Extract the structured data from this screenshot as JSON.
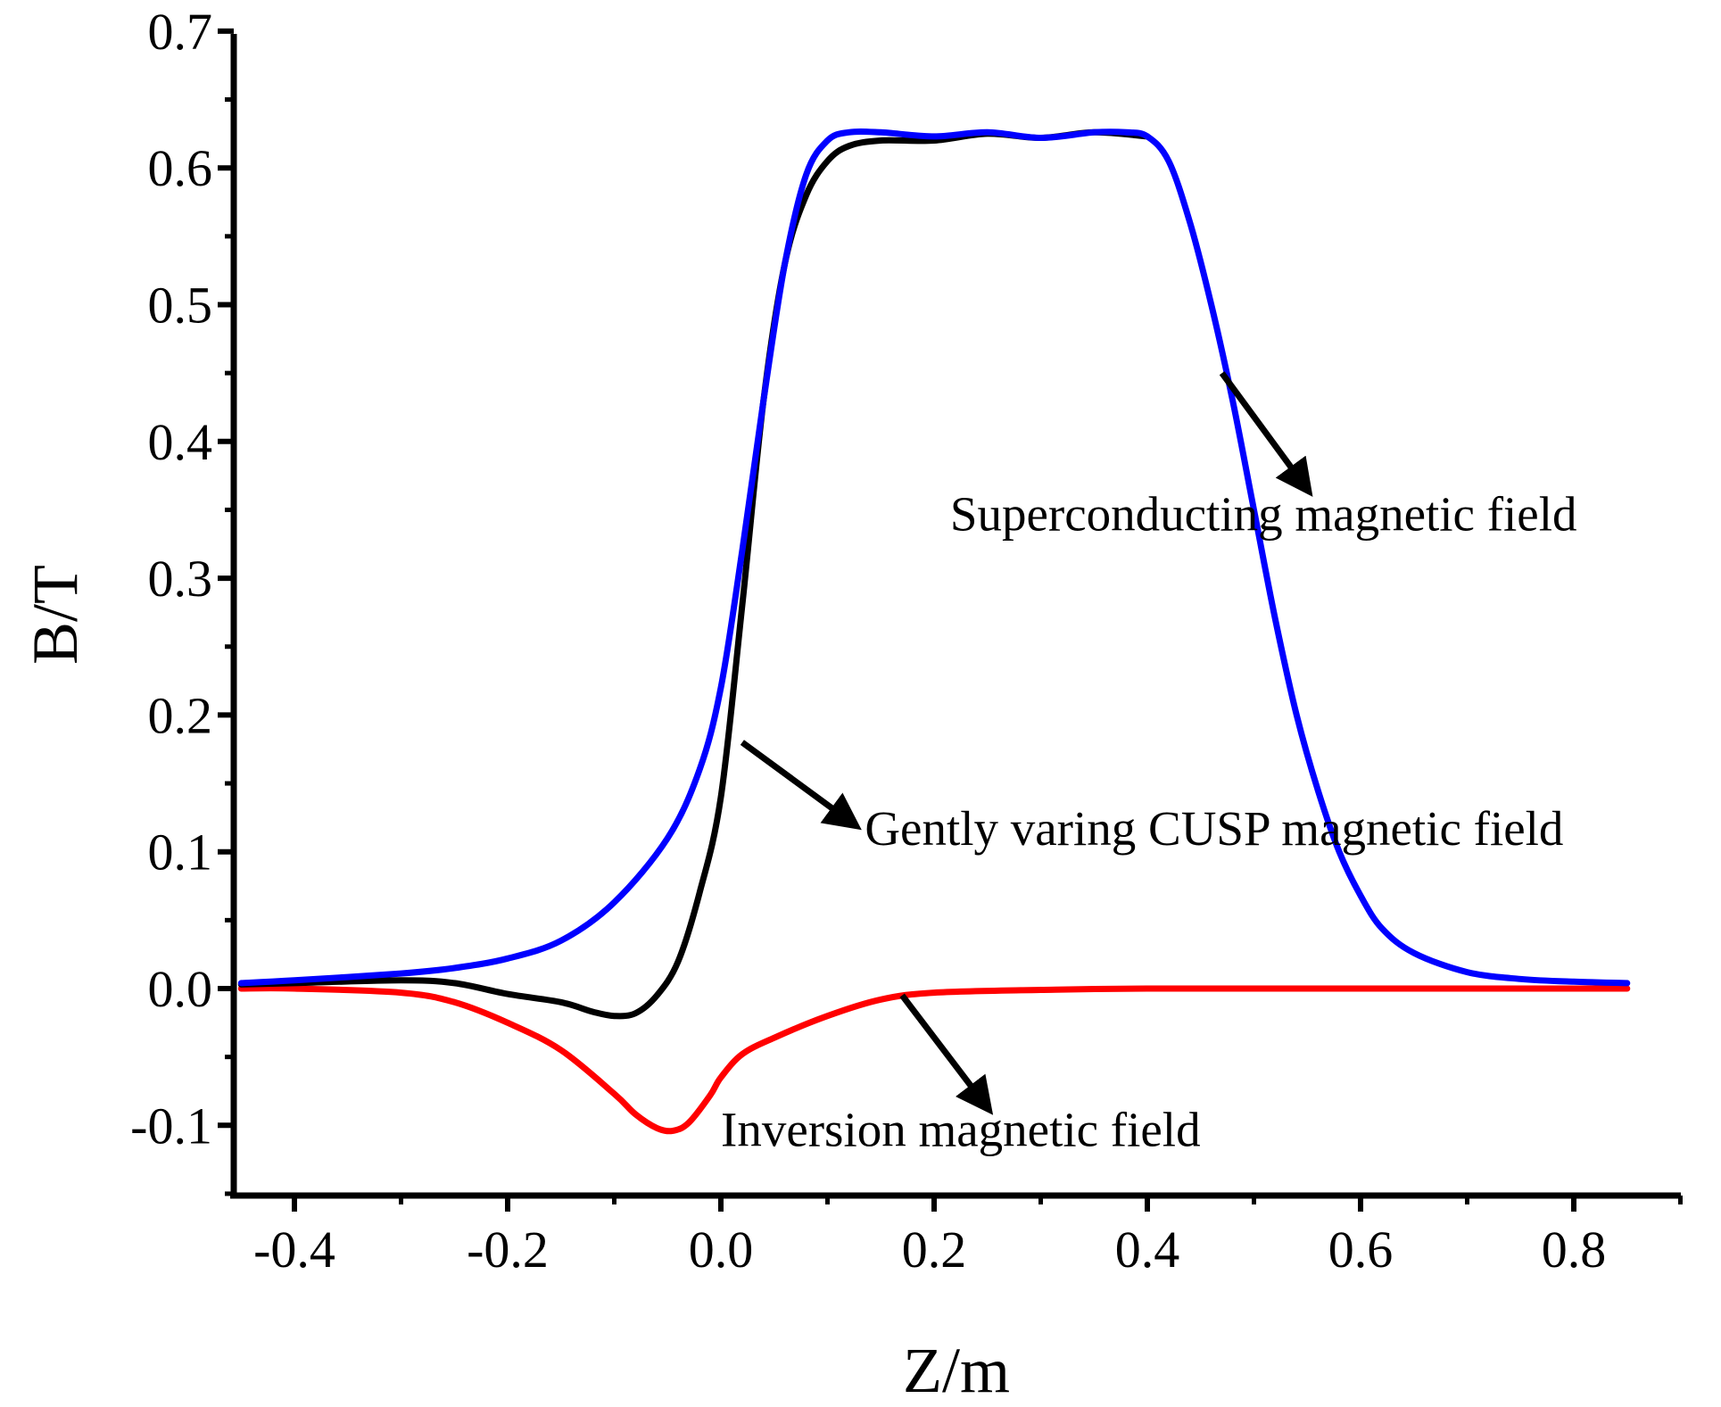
{
  "chart_data": {
    "type": "line",
    "title": "",
    "xlabel": "Z/m",
    "ylabel": "B/T",
    "xlim": [
      -0.46,
      0.9
    ],
    "ylim": [
      -0.15,
      0.7
    ],
    "xticks": [
      -0.4,
      -0.2,
      0.0,
      0.2,
      0.4,
      0.6,
      0.8
    ],
    "xtick_labels": [
      "-0.4",
      "-0.2",
      "0.0",
      "0.2",
      "0.4",
      "0.6",
      "0.8"
    ],
    "yticks": [
      -0.1,
      0.0,
      0.1,
      0.2,
      0.3,
      0.4,
      0.5,
      0.6,
      0.7
    ],
    "ytick_labels": [
      "-0.1",
      "0.0",
      "0.1",
      "0.2",
      "0.3",
      "0.4",
      "0.5",
      "0.6",
      "0.7"
    ],
    "grid": false,
    "series": [
      {
        "name": "Superconducting magnetic field",
        "color": "#0000ff",
        "x": [
          -0.45,
          -0.4,
          -0.3,
          -0.25,
          -0.2,
          -0.15,
          -0.1,
          -0.05,
          -0.02,
          0.0,
          0.02,
          0.04,
          0.06,
          0.08,
          0.1,
          0.12,
          0.15,
          0.2,
          0.25,
          0.3,
          0.35,
          0.38,
          0.4,
          0.42,
          0.44,
          0.46,
          0.48,
          0.5,
          0.52,
          0.54,
          0.56,
          0.58,
          0.6,
          0.62,
          0.65,
          0.7,
          0.75,
          0.8,
          0.85
        ],
        "y": [
          0.004,
          0.006,
          0.011,
          0.015,
          0.022,
          0.035,
          0.063,
          0.11,
          0.16,
          0.22,
          0.32,
          0.43,
          0.53,
          0.595,
          0.62,
          0.626,
          0.626,
          0.623,
          0.626,
          0.622,
          0.626,
          0.626,
          0.623,
          0.605,
          0.56,
          0.5,
          0.43,
          0.35,
          0.27,
          0.2,
          0.145,
          0.1,
          0.068,
          0.044,
          0.026,
          0.012,
          0.007,
          0.005,
          0.004
        ]
      },
      {
        "name": "Gently varing CUSP magnetic field",
        "color": "#000000",
        "x": [
          -0.45,
          -0.4,
          -0.3,
          -0.25,
          -0.2,
          -0.15,
          -0.12,
          -0.1,
          -0.08,
          -0.06,
          -0.04,
          -0.02,
          0.0,
          0.02,
          0.04,
          0.06,
          0.08,
          0.1,
          0.12,
          0.15,
          0.2,
          0.25,
          0.3,
          0.35,
          0.4
        ],
        "y": [
          0.003,
          0.004,
          0.006,
          0.004,
          -0.004,
          -0.01,
          -0.017,
          -0.02,
          -0.018,
          -0.005,
          0.02,
          0.07,
          0.14,
          0.28,
          0.43,
          0.53,
          0.58,
          0.605,
          0.616,
          0.62,
          0.62,
          0.625,
          0.622,
          0.626,
          0.623
        ]
      },
      {
        "name": "Inversion magnetic field",
        "color": "#ff0000",
        "x": [
          -0.45,
          -0.4,
          -0.3,
          -0.25,
          -0.2,
          -0.15,
          -0.1,
          -0.08,
          -0.06,
          -0.045,
          -0.03,
          -0.01,
          0.0,
          0.02,
          0.05,
          0.1,
          0.15,
          0.2,
          0.3,
          0.4,
          0.6,
          0.85
        ],
        "y": [
          0.0,
          0.0,
          -0.003,
          -0.01,
          -0.025,
          -0.045,
          -0.077,
          -0.092,
          -0.102,
          -0.104,
          -0.098,
          -0.078,
          -0.065,
          -0.048,
          -0.036,
          -0.02,
          -0.008,
          -0.003,
          -0.001,
          0.0,
          0.0,
          0.0
        ]
      }
    ],
    "annotations": [
      {
        "text": "Superconducting magnetic field",
        "arrow_from": [
          0.47,
          0.45
        ],
        "arrow_to": [
          0.55,
          0.365
        ],
        "text_at": [
          0.215,
          0.335
        ]
      },
      {
        "text": "Gently varing CUSP magnetic field",
        "arrow_from": [
          0.02,
          0.18
        ],
        "arrow_to": [
          0.125,
          0.12
        ],
        "text_at": [
          0.135,
          0.105
        ]
      },
      {
        "text": "Inversion magnetic field",
        "arrow_from": [
          0.17,
          -0.005
        ],
        "arrow_to": [
          0.25,
          -0.087
        ],
        "text_at": [
          0.0,
          -0.115
        ]
      }
    ]
  }
}
